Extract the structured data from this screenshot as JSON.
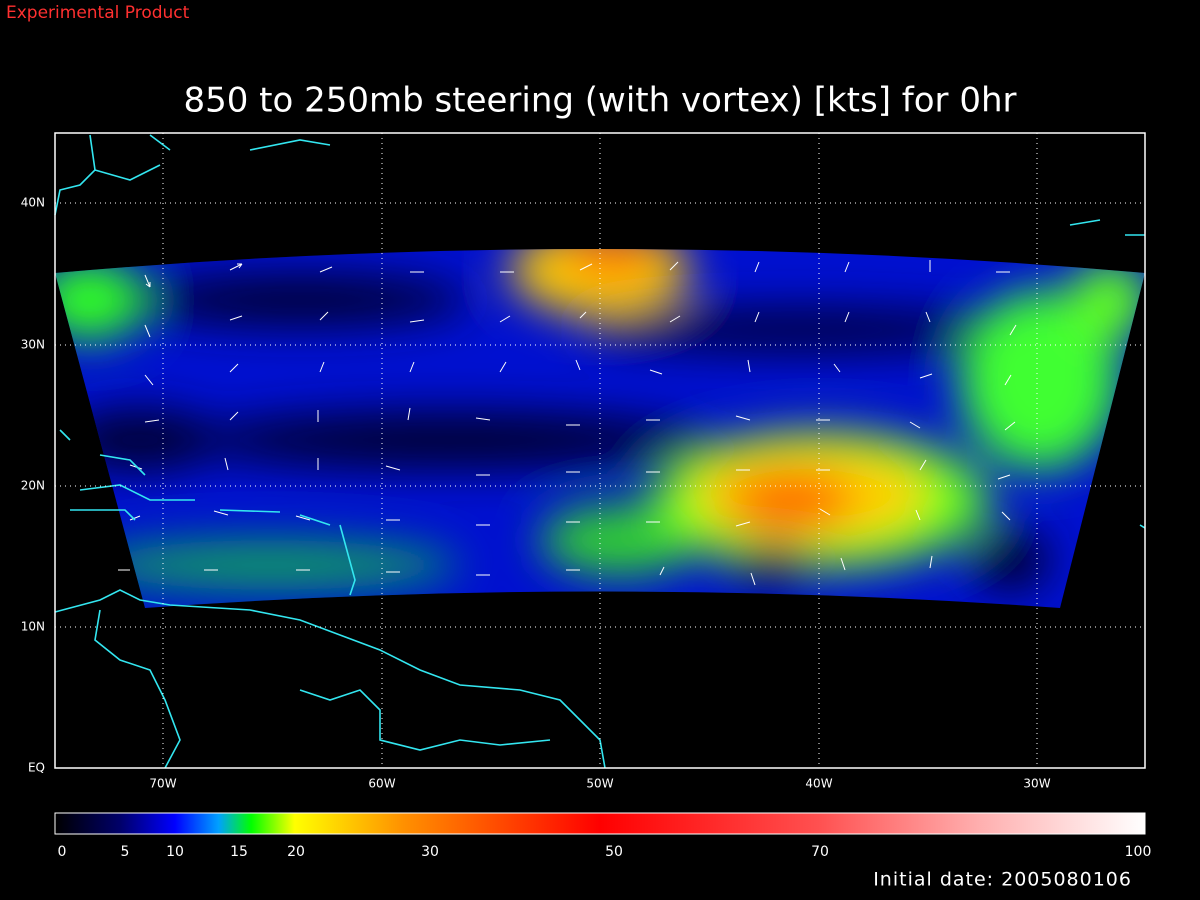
{
  "header": {
    "label": "Experimental Product"
  },
  "title": "850 to 250mb steering (with vortex) [kts] for 0hr",
  "map": {
    "lat_labels": [
      "40N",
      "30N",
      "20N",
      "10N",
      "EQ"
    ],
    "lon_labels": [
      "70W",
      "60W",
      "50W",
      "40W",
      "30W"
    ]
  },
  "colorbar": {
    "ticks": [
      0,
      5,
      10,
      15,
      20,
      30,
      50,
      70,
      100
    ]
  },
  "footer": {
    "initial_date": "Initial date: 2005080106"
  }
}
